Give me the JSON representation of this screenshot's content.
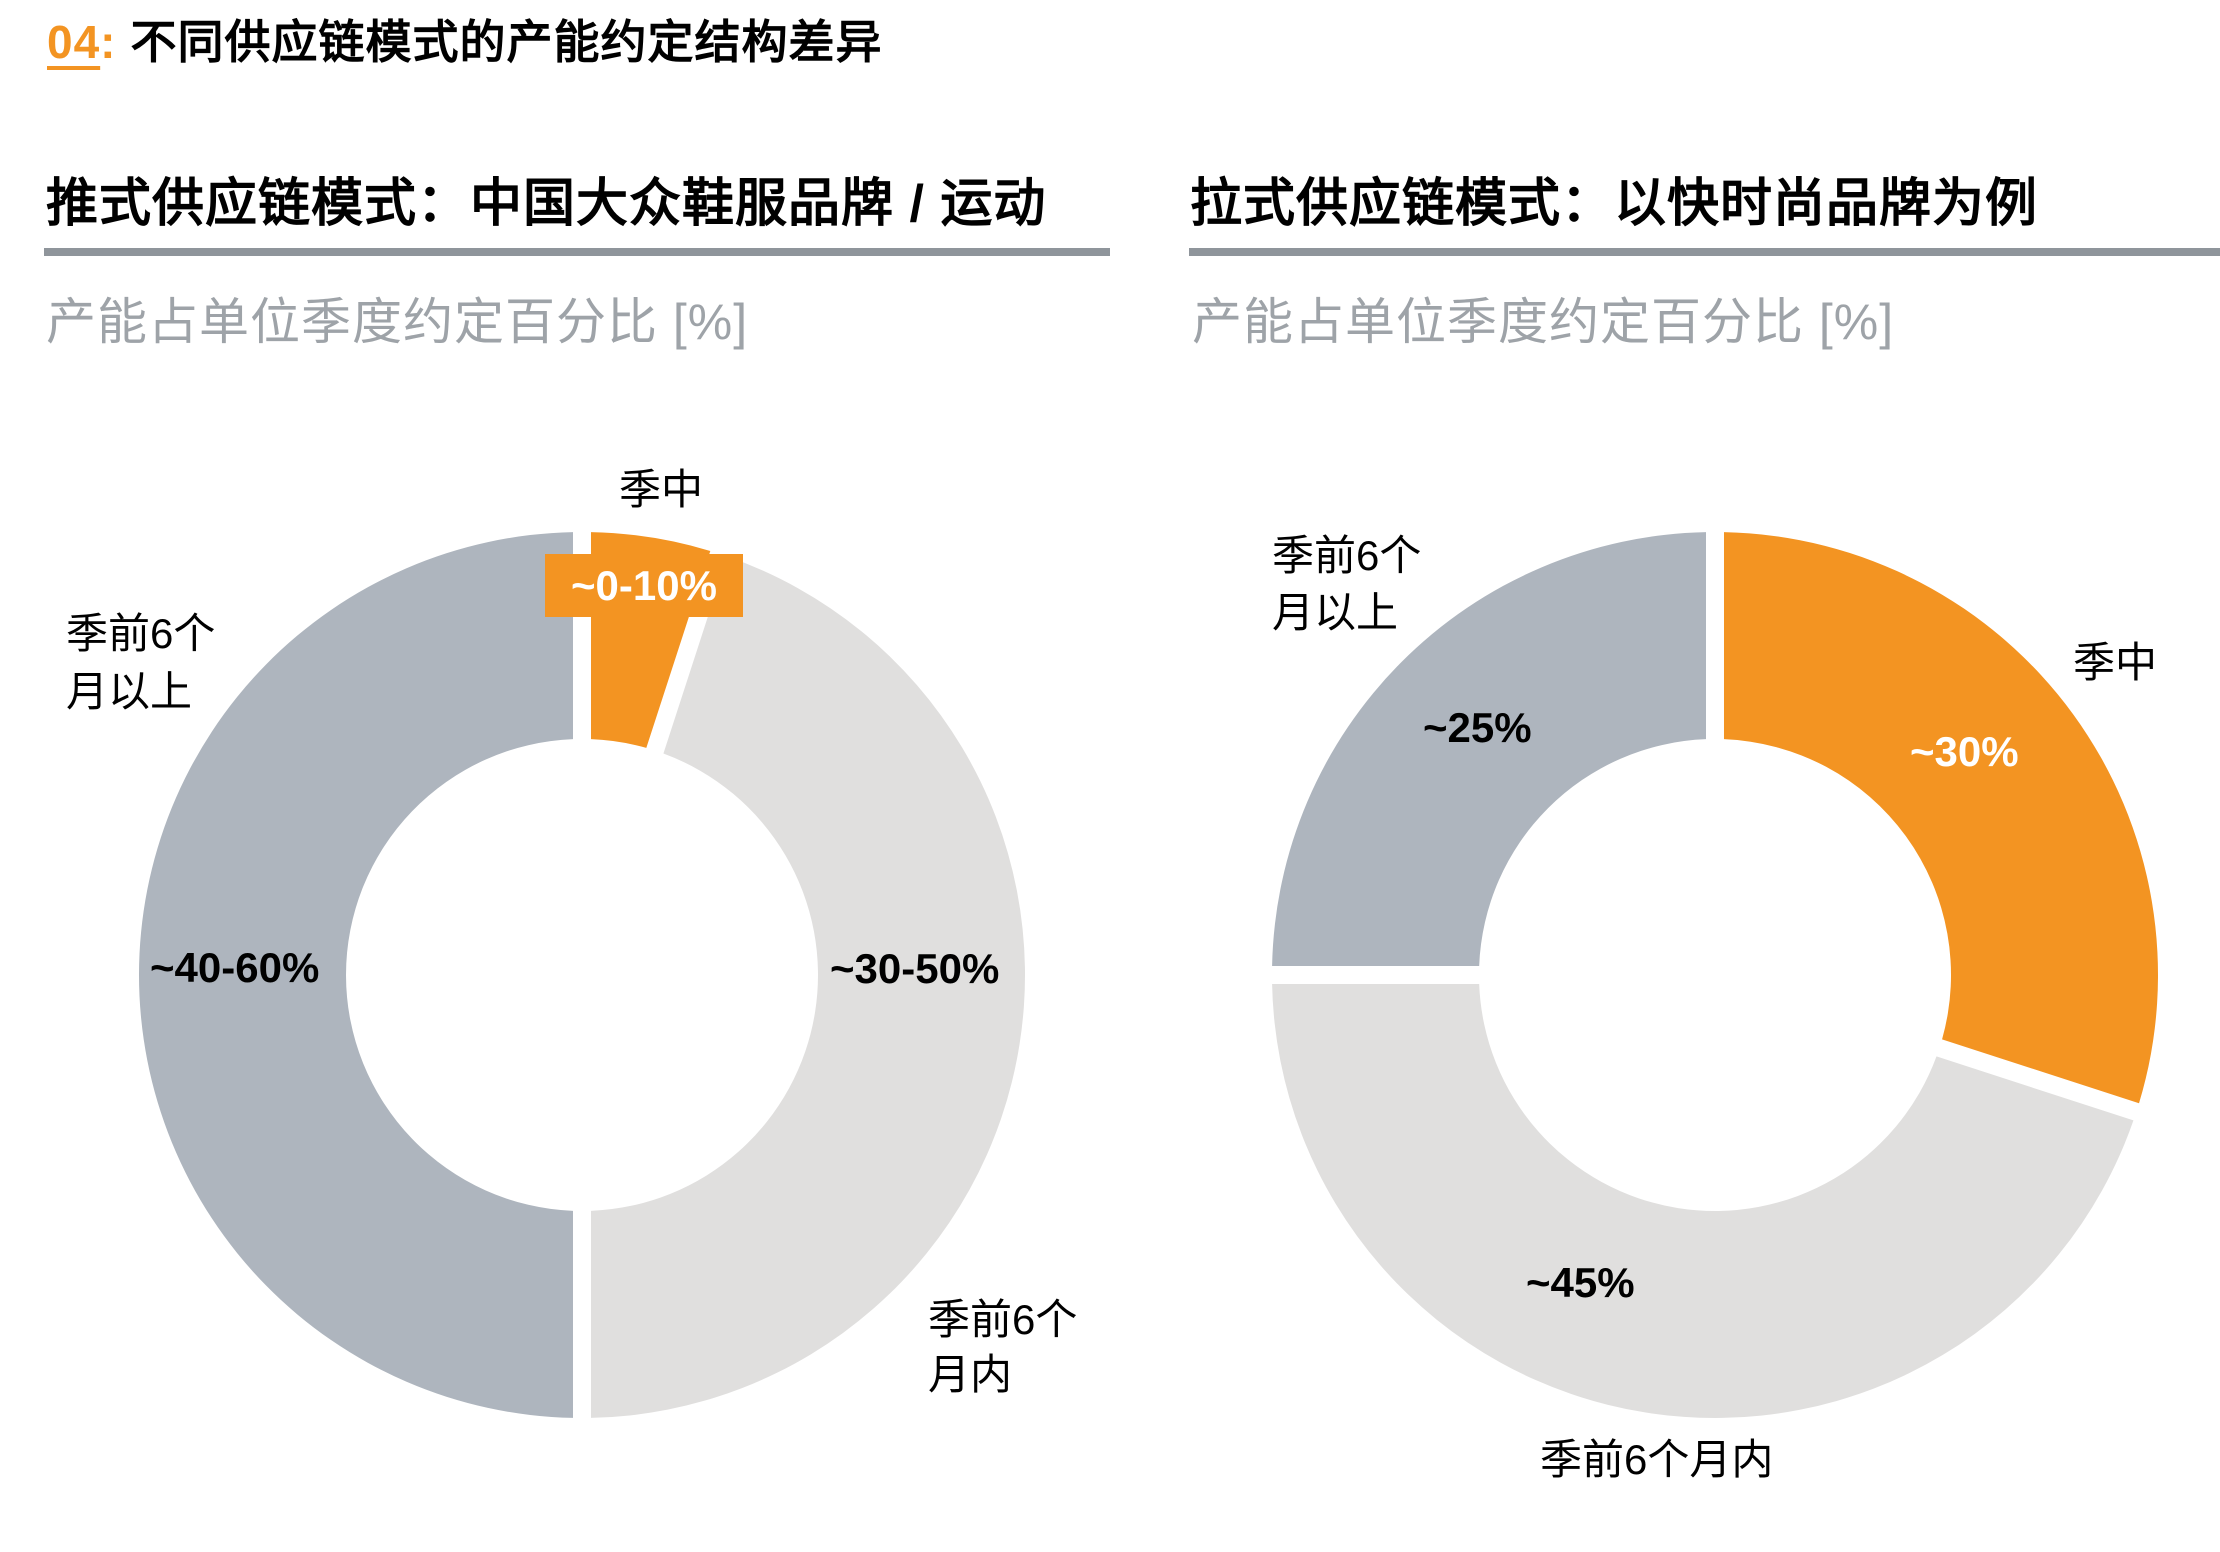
{
  "page": {
    "title_number": "04",
    "title_colon": ":",
    "title_text": "不同供应链模式的产能约定结构差异"
  },
  "colors": {
    "accent_orange": "#f39422",
    "dark_grey": "#aeb5be",
    "light_grey": "#e0dfde",
    "rule_grey": "#8f959b",
    "subtitle_grey": "#9ea3a8"
  },
  "panels": [
    {
      "heading": "推式供应链模式：中国大众鞋服品牌 / 运动",
      "subtitle": "产能占单位季度约定百分比 [%]",
      "labels": {
        "in_season": "季中",
        "over_6m_line1": "季前6个",
        "over_6m_line2": "月以上",
        "within_6m_line1": "季前6个",
        "within_6m_line2": "月内"
      },
      "values": {
        "in_season": "~0-10%",
        "within_6m": "~30-50%",
        "over_6m": "~40-60%"
      }
    },
    {
      "heading": "拉式供应链模式：以快时尚品牌为例",
      "subtitle": "产能占单位季度约定百分比 [%]",
      "labels": {
        "in_season": "季中",
        "over_6m_line1": "季前6个",
        "over_6m_line2": "月以上",
        "within_6m": "季前6个月内"
      },
      "values": {
        "in_season": "~30%",
        "within_6m": "~45%",
        "over_6m": "~25%"
      }
    }
  ],
  "chart_data": [
    {
      "type": "pie",
      "subtype": "donut",
      "title": "推式供应链模式：中国大众鞋服品牌 / 运动",
      "subtitle": "产能占单位季度约定百分比 [%]",
      "categories": [
        "季中",
        "季前6个月内",
        "季前6个月以上"
      ],
      "values": [
        5,
        45,
        50
      ],
      "value_labels": [
        "~0-10%",
        "~30-50%",
        "~40-60%"
      ],
      "colors": [
        "#f39422",
        "#e0dfde",
        "#aeb5be"
      ],
      "start_angle": "12 o'clock, clockwise"
    },
    {
      "type": "pie",
      "subtype": "donut",
      "title": "拉式供应链模式：以快时尚品牌为例",
      "subtitle": "产能占单位季度约定百分比 [%]",
      "categories": [
        "季中",
        "季前6个月内",
        "季前6个月以上"
      ],
      "values": [
        30,
        45,
        25
      ],
      "value_labels": [
        "~30%",
        "~45%",
        "~25%"
      ],
      "colors": [
        "#f39422",
        "#e0dfde",
        "#aeb5be"
      ],
      "start_angle": "12 o'clock, clockwise"
    }
  ]
}
